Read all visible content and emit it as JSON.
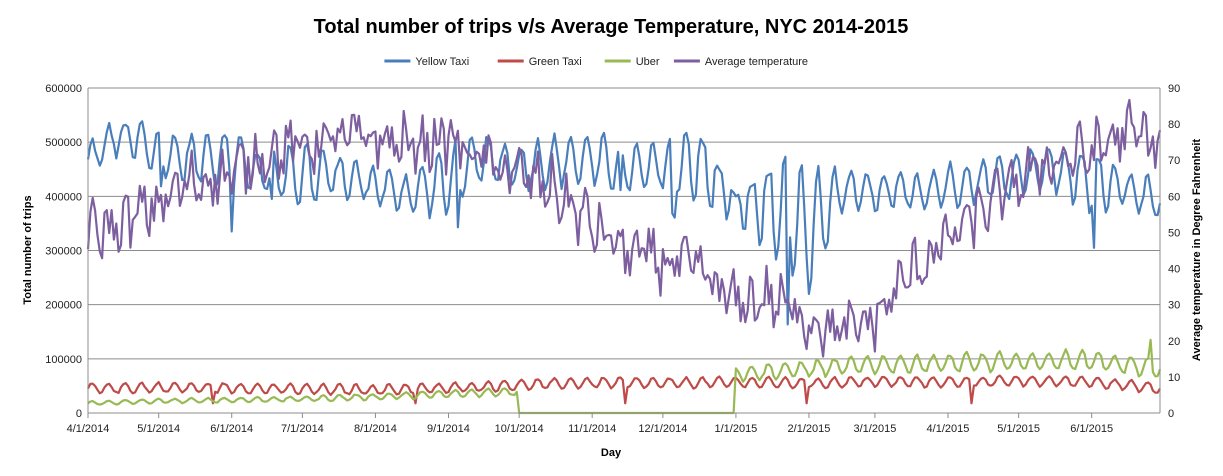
{
  "chart_data": {
    "type": "line",
    "title": "Total number of trips v/s Average Temperature, NYC 2014-2015",
    "xlabel": "Day",
    "ylabel": "Total number of trips",
    "y2label": "Average temperature in Degree Fahrenheit",
    "ylim": [
      0,
      600000
    ],
    "y2lim": [
      0,
      90
    ],
    "x_range": [
      "4/1/2014",
      "6/30/2015"
    ],
    "y_ticks": [
      "0",
      "100000",
      "200000",
      "300000",
      "400000",
      "500000",
      "600000"
    ],
    "y2_ticks": [
      "0",
      "10",
      "20",
      "30",
      "40",
      "50",
      "60",
      "70",
      "80",
      "90"
    ],
    "x_tick_labels": [
      "4/1/2014",
      "5/1/2014",
      "6/1/2014",
      "7/1/2014",
      "8/1/2014",
      "9/1/2014",
      "10/1/2014",
      "11/1/2014",
      "12/1/2014",
      "1/1/2015",
      "2/1/2015",
      "3/1/2015",
      "4/1/2015",
      "5/1/2015",
      "6/1/2015"
    ],
    "grid": "horizontal",
    "legend_position": "top",
    "series": [
      {
        "name": "Yellow Taxi",
        "axis": "left",
        "color": "#4a7ebb",
        "x": [
          "4/1/2014",
          "4/15/2014",
          "5/1/2014",
          "5/15/2014",
          "6/1/2014",
          "6/15/2014",
          "7/1/2014",
          "7/15/2014",
          "8/1/2014",
          "8/15/2014",
          "9/1/2014",
          "9/15/2014",
          "10/1/2014",
          "10/15/2014",
          "11/1/2014",
          "11/15/2014",
          "12/1/2014",
          "12/15/2014",
          "1/1/2015",
          "1/15/2015",
          "2/1/2015",
          "2/15/2015",
          "3/1/2015",
          "3/15/2015",
          "4/1/2015",
          "4/15/2015",
          "5/1/2015",
          "5/15/2015",
          "6/1/2015",
          "6/15/2015",
          "6/30/2015"
        ],
        "values": [
          465000,
          520000,
          480000,
          470000,
          475000,
          440000,
          445000,
          440000,
          420000,
          405000,
          430000,
          470000,
          455000,
          465000,
          470000,
          450000,
          455000,
          470000,
          410000,
          400000,
          330000,
          415000,
          405000,
          410000,
          420000,
          430000,
          445000,
          455000,
          430000,
          420000,
          385000
        ],
        "high": [
          545000,
          530000,
          545000,
          525000,
          510000,
          505000,
          500000,
          475000,
          470000,
          465000,
          510000,
          515000,
          500000,
          520000,
          560000,
          535000,
          510000,
          520000,
          400000,
          440000,
          520000,
          450000,
          440000,
          460000,
          475000,
          490000,
          500000,
          485000,
          470000,
          460000,
          470000
        ],
        "low": [
          460000,
          415000,
          420000,
          400000,
          335000,
          415000,
          310000,
          370000,
          380000,
          370000,
          320000,
          400000,
          390000,
          395000,
          420000,
          410000,
          400000,
          290000,
          210000,
          140000,
          190000,
          330000,
          360000,
          380000,
          370000,
          380000,
          400000,
          360000,
          300000,
          370000,
          365000
        ]
      },
      {
        "name": "Green Taxi",
        "axis": "left",
        "color": "#be4b48",
        "x": [
          "4/1/2014",
          "5/1/2014",
          "6/1/2014",
          "7/1/2014",
          "8/1/2014",
          "9/1/2014",
          "10/1/2014",
          "11/1/2014",
          "12/1/2014",
          "1/1/2015",
          "2/1/2015",
          "3/1/2015",
          "4/1/2015",
          "5/1/2015",
          "6/1/2015",
          "6/30/2015"
        ],
        "values": [
          45000,
          47000,
          46000,
          44000,
          43000,
          46000,
          52000,
          56000,
          55000,
          57000,
          55000,
          58000,
          57000,
          59000,
          58000,
          45000
        ]
      },
      {
        "name": "Uber",
        "axis": "left",
        "color": "#98b954",
        "x": [
          "4/1/2014",
          "5/1/2014",
          "6/1/2014",
          "7/1/2014",
          "8/1/2014",
          "9/1/2014",
          "9/30/2014",
          "10/1/2014",
          "12/31/2014",
          "1/1/2015",
          "2/1/2015",
          "3/1/2015",
          "4/1/2015",
          "5/1/2015",
          "6/1/2015",
          "6/30/2015"
        ],
        "values": [
          18000,
          22000,
          24000,
          26000,
          30000,
          35000,
          40000,
          0,
          0,
          72000,
          82000,
          90000,
          92000,
          95000,
          98000,
          80000
        ]
      },
      {
        "name": "Average temperature",
        "axis": "right",
        "color": "#7d5fa0",
        "x": [
          "4/1/2014",
          "4/15/2014",
          "5/1/2014",
          "5/15/2014",
          "6/1/2014",
          "6/15/2014",
          "7/1/2014",
          "7/15/2014",
          "8/1/2014",
          "8/15/2014",
          "9/1/2014",
          "9/15/2014",
          "10/1/2014",
          "10/15/2014",
          "11/1/2014",
          "11/15/2014",
          "12/1/2014",
          "12/15/2014",
          "1/1/2015",
          "1/15/2015",
          "2/1/2015",
          "2/15/2015",
          "3/1/2015",
          "3/15/2015",
          "4/1/2015",
          "4/15/2015",
          "5/1/2015",
          "5/15/2015",
          "6/1/2015",
          "6/15/2015",
          "6/30/2015"
        ],
        "values": [
          50,
          52,
          58,
          64,
          66,
          72,
          74,
          76,
          76,
          74,
          76,
          70,
          66,
          62,
          52,
          45,
          42,
          40,
          30,
          32,
          26,
          22,
          26,
          38,
          48,
          56,
          64,
          70,
          72,
          78,
          75
        ]
      }
    ]
  }
}
